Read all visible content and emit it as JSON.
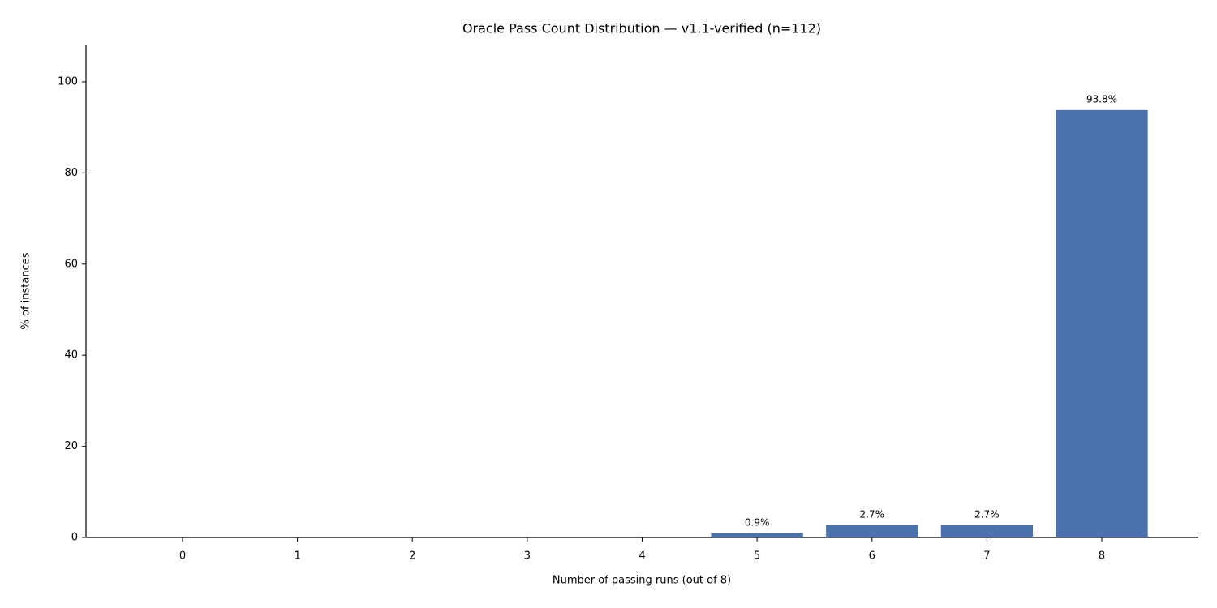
{
  "chart_data": {
    "type": "bar",
    "title": "Oracle Pass Count Distribution — v1.1-verified (n=112)",
    "x_label": "Number of passing runs (out of 8)",
    "y_label": "% of instances",
    "categories": [
      "0",
      "1",
      "2",
      "3",
      "4",
      "5",
      "6",
      "7",
      "8"
    ],
    "values": [
      0,
      0,
      0,
      0,
      0,
      0.9,
      2.7,
      2.7,
      93.8
    ],
    "value_labels": [
      null,
      null,
      null,
      null,
      null,
      "0.9%",
      "2.7%",
      "2.7%",
      "93.8%"
    ],
    "color": "#4c72ab",
    "ylim": [
      0,
      108
    ],
    "yticks": [
      0,
      20,
      40,
      60,
      80,
      100
    ],
    "grid": false
  }
}
